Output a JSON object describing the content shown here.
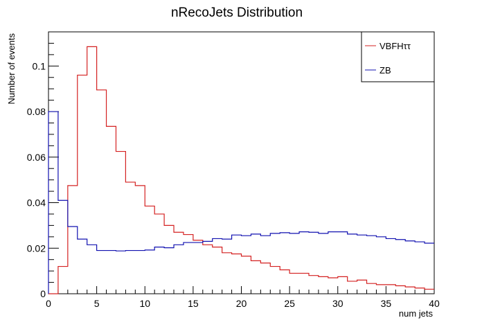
{
  "chart_data": {
    "type": "histogram",
    "title": "nRecoJets Distribution",
    "xlabel": "num jets",
    "ylabel": "Number of events",
    "xlim": [
      0,
      40
    ],
    "ylim": [
      0,
      0.115
    ],
    "bin_edges": [
      0,
      1,
      2,
      3,
      4,
      5,
      6,
      7,
      8,
      9,
      10,
      11,
      12,
      13,
      14,
      15,
      16,
      17,
      18,
      19,
      20,
      21,
      22,
      23,
      24,
      25,
      26,
      27,
      28,
      29,
      30,
      31,
      32,
      33,
      34,
      35,
      36,
      37,
      38,
      39,
      40
    ],
    "x_ticks": [
      0,
      5,
      10,
      15,
      20,
      25,
      30,
      35,
      40
    ],
    "x_tick_labels": [
      "0",
      "5",
      "10",
      "15",
      "20",
      "25",
      "30",
      "35",
      "40"
    ],
    "y_ticks": [
      0,
      0.02,
      0.04,
      0.06,
      0.08,
      0.1
    ],
    "y_tick_labels": [
      "0",
      "0.02",
      "0.04",
      "0.06",
      "0.08",
      "0.1"
    ],
    "legend_position": "top-right",
    "series": [
      {
        "name": "VBFHττ",
        "color": "#d42020",
        "values": [
          0,
          0.012,
          0.0475,
          0.096,
          0.1085,
          0.0895,
          0.0735,
          0.0625,
          0.049,
          0.0475,
          0.0385,
          0.035,
          0.03,
          0.027,
          0.026,
          0.0235,
          0.0215,
          0.0205,
          0.018,
          0.0175,
          0.0165,
          0.0145,
          0.0135,
          0.012,
          0.0105,
          0.009,
          0.009,
          0.008,
          0.0075,
          0.007,
          0.0075,
          0.0055,
          0.006,
          0.0045,
          0.004,
          0.004,
          0.0035,
          0.003,
          0.0025,
          0.002
        ]
      },
      {
        "name": "ZB",
        "color": "#1010b0",
        "values": [
          0.08,
          0.041,
          0.0295,
          0.024,
          0.0215,
          0.019,
          0.019,
          0.0188,
          0.019,
          0.019,
          0.0192,
          0.0205,
          0.0202,
          0.0215,
          0.0225,
          0.0225,
          0.023,
          0.0242,
          0.024,
          0.0258,
          0.0255,
          0.0262,
          0.0255,
          0.0265,
          0.0268,
          0.0265,
          0.0272,
          0.027,
          0.0265,
          0.0272,
          0.0272,
          0.0262,
          0.0258,
          0.0255,
          0.025,
          0.0242,
          0.0238,
          0.0232,
          0.0228,
          0.0222
        ]
      }
    ]
  }
}
